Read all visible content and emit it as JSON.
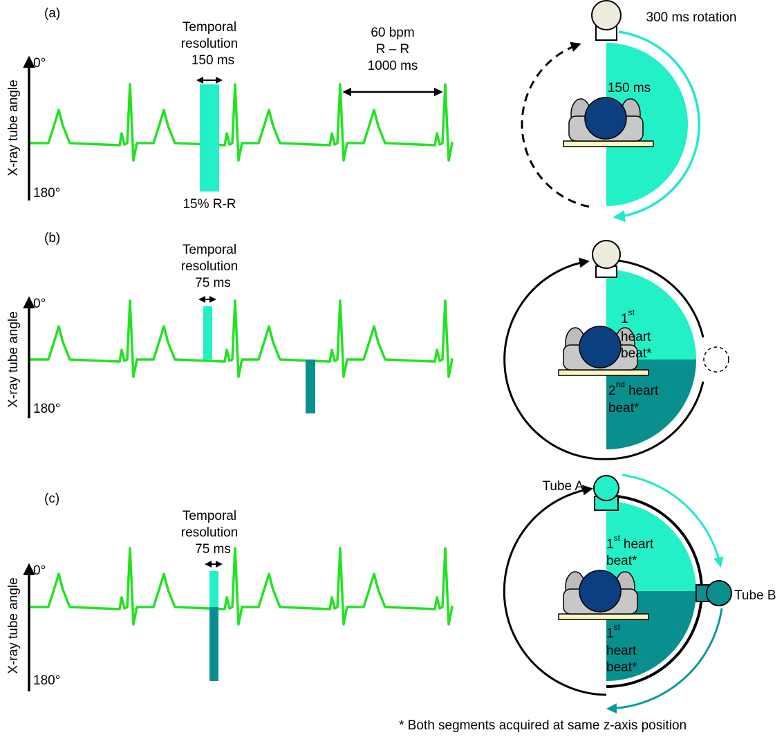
{
  "panels": [
    {
      "label": "(a)",
      "axis_label": "X-ray tube angle",
      "angle_top": "0°",
      "angle_bottom": "180°",
      "temporal": [
        "Temporal",
        "resolution",
        "150 ms"
      ],
      "bar_label": "15% R-R",
      "rr": [
        "60 bpm",
        "R – R",
        "1000 ms"
      ],
      "rotation": "300 ms rotation",
      "sector": "150 ms"
    },
    {
      "label": "(b)",
      "axis_label": "X-ray tube angle",
      "angle_top": "0°",
      "angle_bottom": "180°",
      "temporal": [
        "Temporal",
        "resolution",
        "75 ms"
      ],
      "sector_first": {
        "number": "1",
        "suffix": "st",
        "lines": [
          "heart",
          "beat*"
        ]
      },
      "sector_second": {
        "number": "2",
        "suffix": "nd",
        "lines": [
          "heart",
          "beat*"
        ]
      }
    },
    {
      "label": "(c)",
      "axis_label": "X-ray tube angle",
      "angle_top": "0°",
      "angle_bottom": "180°",
      "temporal": [
        "Temporal",
        "resolution",
        "75 ms"
      ],
      "tube_a": "Tube A",
      "tube_b": "Tube B",
      "sector_first": {
        "number": "1",
        "suffix": "st",
        "lines": [
          "heart",
          "beat*"
        ]
      },
      "sector_second": {
        "number": "1",
        "suffix": "st",
        "lines": [
          "heart",
          "beat*"
        ]
      }
    }
  ],
  "footnote": "* Both segments acquired at same z-axis position"
}
